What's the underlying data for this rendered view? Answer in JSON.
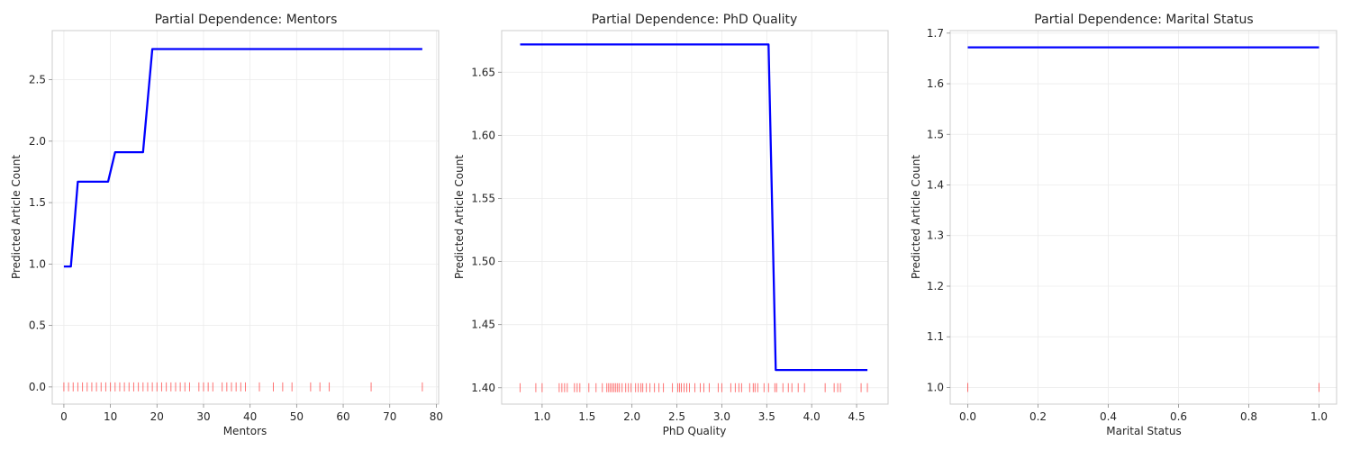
{
  "chart_data": [
    {
      "type": "line",
      "title": "Partial Dependence: Mentors",
      "xlabel": "Mentors",
      "ylabel": "Predicted Article Count",
      "xlim": [
        -2.5,
        80.5
      ],
      "ylim": [
        -0.14,
        2.9
      ],
      "xticks": [
        0,
        10,
        20,
        30,
        40,
        50,
        60,
        70,
        80
      ],
      "yticks": [
        0.0,
        0.5,
        1.0,
        1.5,
        2.0,
        2.5
      ],
      "tick_decimals": 1,
      "grid": true,
      "series": [
        {
          "x": [
            0,
            1.5,
            3,
            9.5,
            11,
            17,
            19,
            77
          ],
          "y": [
            0.98,
            0.98,
            1.67,
            1.67,
            1.91,
            1.91,
            2.75,
            2.75
          ],
          "color": "#0000ff"
        }
      ],
      "rug": {
        "baseline": 0.0,
        "color": "#ff0000",
        "values": [
          0,
          1,
          2,
          3,
          4,
          5,
          6,
          7,
          8,
          9,
          10,
          11,
          12,
          13,
          14,
          15,
          16,
          17,
          18,
          19,
          20,
          21,
          22,
          23,
          24,
          25,
          26,
          27,
          29,
          30,
          31,
          32,
          34,
          35,
          36,
          37,
          38,
          39,
          42,
          45,
          47,
          49,
          53,
          55,
          57,
          66,
          77
        ]
      }
    },
    {
      "type": "line",
      "title": "Partial Dependence: PhD Quality",
      "xlabel": "PhD Quality",
      "ylabel": "Predicted Article Count",
      "xlim": [
        0.55,
        4.85
      ],
      "ylim": [
        1.387,
        1.683
      ],
      "xticks": [
        1.0,
        1.5,
        2.0,
        2.5,
        3.0,
        3.5,
        4.0,
        4.5
      ],
      "yticks": [
        1.4,
        1.45,
        1.5,
        1.55,
        1.6,
        1.65
      ],
      "tick_decimals": 2,
      "x_tick_decimals": 1,
      "grid": true,
      "series": [
        {
          "x": [
            0.755,
            3.52,
            3.6,
            4.62
          ],
          "y": [
            1.672,
            1.672,
            1.414,
            1.414
          ],
          "color": "#0000ff"
        }
      ],
      "rug": {
        "baseline": 1.4,
        "color": "#ff0000",
        "values": [
          0.755,
          0.93,
          1.0,
          1.19,
          1.22,
          1.25,
          1.28,
          1.36,
          1.39,
          1.42,
          1.52,
          1.6,
          1.67,
          1.72,
          1.74,
          1.76,
          1.78,
          1.8,
          1.82,
          1.84,
          1.86,
          1.89,
          1.93,
          1.96,
          1.99,
          2.04,
          2.07,
          2.1,
          2.12,
          2.16,
          2.2,
          2.25,
          2.3,
          2.35,
          2.45,
          2.51,
          2.53,
          2.55,
          2.58,
          2.61,
          2.64,
          2.7,
          2.76,
          2.8,
          2.86,
          2.96,
          3.0,
          3.1,
          3.15,
          3.19,
          3.22,
          3.31,
          3.35,
          3.37,
          3.4,
          3.47,
          3.52,
          3.59,
          3.61,
          3.68,
          3.74,
          3.78,
          3.85,
          3.92,
          4.15,
          4.25,
          4.29,
          4.32,
          4.55,
          4.62
        ]
      }
    },
    {
      "type": "line",
      "title": "Partial Dependence: Marital Status",
      "xlabel": "Marital Status",
      "ylabel": "Predicted Article Count",
      "xlim": [
        -0.05,
        1.05
      ],
      "ylim": [
        0.967,
        1.705
      ],
      "xticks": [
        0.0,
        0.2,
        0.4,
        0.6,
        0.8,
        1.0
      ],
      "yticks": [
        1.0,
        1.1,
        1.2,
        1.3,
        1.4,
        1.5,
        1.6,
        1.7
      ],
      "tick_decimals": 1,
      "grid": true,
      "series": [
        {
          "x": [
            0.0,
            1.0
          ],
          "y": [
            1.672,
            1.672
          ],
          "color": "#0000ff"
        }
      ],
      "rug": {
        "baseline": 1.0,
        "color": "#ff0000",
        "values": [
          0.0,
          1.0
        ]
      }
    }
  ]
}
